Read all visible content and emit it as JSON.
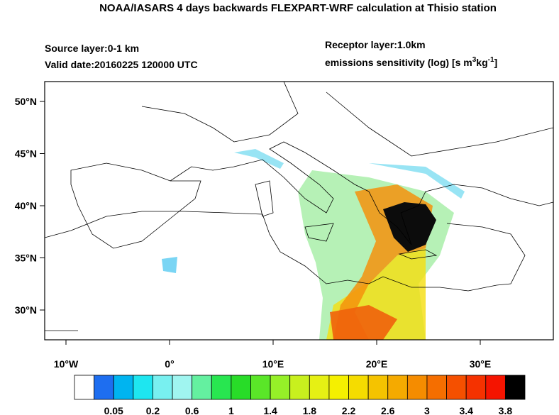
{
  "header": {
    "title": "NOAA/IASARS 4 days backwards FLEXPART-WRF calculation at Thisio station",
    "source_layer": "Source layer:0-1 km",
    "valid_date": "Valid date:20160225 120000 UTC",
    "receptor_layer": "Receptor layer:1.0km",
    "units": [
      "emissions sensitivity (log) [s m",
      "3",
      "kg",
      "-1",
      "]"
    ]
  },
  "map": {
    "lon_ticks": [
      {
        "value": -10,
        "label": "10°W"
      },
      {
        "value": 0,
        "label": "0°"
      },
      {
        "value": 10,
        "label": "10°E"
      },
      {
        "value": 20,
        "label": "20°E"
      },
      {
        "value": 30,
        "label": "30°E"
      }
    ],
    "lat_ticks": [
      {
        "value": 50,
        "label": "50°N"
      },
      {
        "value": 45,
        "label": "45°N"
      },
      {
        "value": 40,
        "label": "40°N"
      },
      {
        "value": 35,
        "label": "35°N"
      },
      {
        "value": 30,
        "label": "30°N"
      }
    ]
  },
  "colorbar": {
    "colors": [
      "#ffffff",
      "#1e6ef0",
      "#00b4f0",
      "#1ee6f0",
      "#78f0f0",
      "#a0f5f0",
      "#64f0a0",
      "#28e650",
      "#28dc28",
      "#5ae628",
      "#96f028",
      "#c8f01e",
      "#e6f014",
      "#f5f000",
      "#f5dc00",
      "#f5c300",
      "#f5aa00",
      "#f58c00",
      "#f56e00",
      "#f55000",
      "#f53200",
      "#f51400",
      "#000000"
    ],
    "labels": [
      0.05,
      0.2,
      0.6,
      1,
      1.4,
      1.8,
      2.2,
      2.6,
      3,
      3.4,
      3.8
    ]
  }
}
